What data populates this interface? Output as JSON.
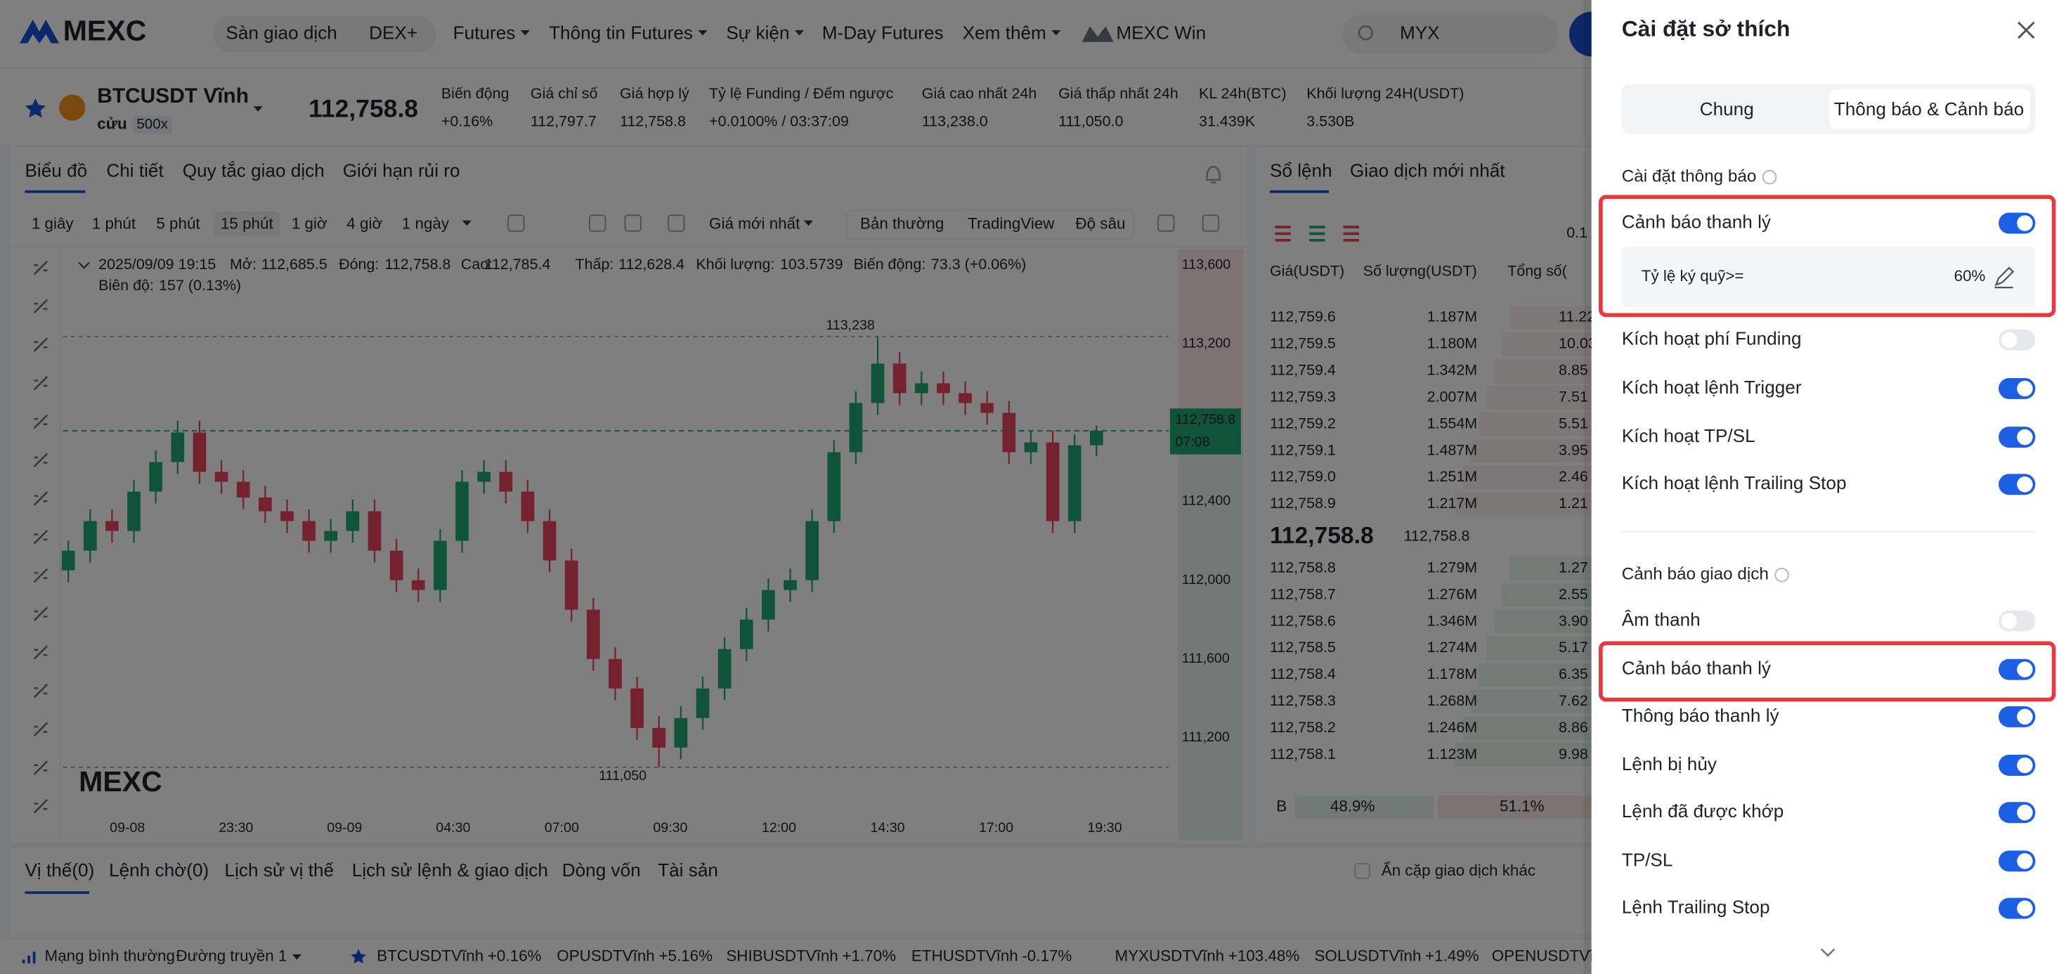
{
  "nav": {
    "logo": "MEXC",
    "items": [
      "Sàn giao dịch",
      "DEX+",
      "Futures",
      "Thông tin Futures",
      "Sự kiện",
      "M-Day Futures",
      "Xem thêm",
      "MEXC Win"
    ],
    "search": "MYX"
  },
  "ticker": {
    "symbol": "BTCUSDT Vĩnh",
    "symbol_line2": "cửu",
    "leverage": "500x",
    "price": "112,758.8",
    "stats": [
      {
        "label": "Biến động",
        "value": "+0.16%"
      },
      {
        "label": "Giá chỉ số",
        "value": "112,797.7"
      },
      {
        "label": "Giá hợp lý",
        "value": "112,758.8"
      },
      {
        "label": "Tỷ lệ Funding / Đếm ngược",
        "value": "+0.0100% / 03:37:09"
      },
      {
        "label": "Giá cao nhất 24h",
        "value": "113,238.0"
      },
      {
        "label": "Giá thấp nhất 24h",
        "value": "111,050.0"
      },
      {
        "label": "KL 24h(BTC)",
        "value": "31.439K"
      },
      {
        "label": "Khối lượng 24H(USDT)",
        "value": "3.530B"
      }
    ]
  },
  "chart_tabs": [
    "Biểu đồ",
    "Chi tiết",
    "Quy tắc giao dịch",
    "Giới hạn rủi ro"
  ],
  "book_tabs": [
    "Sổ lệnh",
    "Giao dịch mới nhất"
  ],
  "intervals": [
    "1 giây",
    "1 phút",
    "5 phút",
    "15 phút",
    "1 giờ",
    "4 giờ",
    "1 ngày"
  ],
  "active_interval": 3,
  "chart_options": [
    "Giá mới nhất",
    "Bản thường",
    "TradingView",
    "Độ sâu"
  ],
  "ohlc": {
    "date": "2025/09/09 19:15",
    "fields": [
      {
        "label": "Mở:",
        "value": "112,685.5"
      },
      {
        "label": "Đóng:",
        "value": "112,758.8"
      },
      {
        "label": "Cao:",
        "value": "112,785.4"
      },
      {
        "label": "Thấp:",
        "value": "112,628.4"
      },
      {
        "label": "Khối lượng:",
        "value": "103.5739"
      },
      {
        "label": "Biến động:",
        "value": "73.3 (+0.06%)"
      }
    ],
    "amplitude": {
      "label": "Biên độ:",
      "value": "157 (0.13%)"
    }
  },
  "chart": {
    "type": "candlestick",
    "ylim": [
      110800,
      113680
    ],
    "yticks": [
      {
        "value": 113600,
        "label": "113,600"
      },
      {
        "value": 113200,
        "label": "113,200"
      },
      {
        "value": 112400,
        "label": "112,400"
      },
      {
        "value": 112000,
        "label": "112,000"
      },
      {
        "value": 111600,
        "label": "111,600"
      },
      {
        "value": 111200,
        "label": "111,200"
      }
    ],
    "x_labels": [
      "09-08",
      "23:30",
      "09-09",
      "04:30",
      "07:00",
      "09:30",
      "12:00",
      "14:30",
      "17:00",
      "19:30"
    ],
    "high": {
      "value": 113238,
      "label": "113,238"
    },
    "low": {
      "value": 111050,
      "label": "111,050"
    },
    "last": {
      "value": 112758.8,
      "label": "112,758.8"
    },
    "countdown": "07:08",
    "watermark": "MEXC",
    "candles": [
      [
        112050,
        112200,
        111990,
        112150
      ],
      [
        112150,
        112360,
        112090,
        112300
      ],
      [
        112300,
        112360,
        112190,
        112250
      ],
      [
        112250,
        112510,
        112190,
        112450
      ],
      [
        112450,
        112660,
        112390,
        112600
      ],
      [
        112600,
        112810,
        112540,
        112750
      ],
      [
        112750,
        112810,
        112490,
        112550
      ],
      [
        112550,
        112610,
        112440,
        112500
      ],
      [
        112500,
        112560,
        112360,
        112420
      ],
      [
        112420,
        112480,
        112290,
        112350
      ],
      [
        112350,
        112410,
        112240,
        112300
      ],
      [
        112300,
        112360,
        112140,
        112200
      ],
      [
        112200,
        112310,
        112140,
        112250
      ],
      [
        112250,
        112410,
        112190,
        112350
      ],
      [
        112350,
        112410,
        112090,
        112150
      ],
      [
        112150,
        112210,
        111940,
        112000
      ],
      [
        112000,
        112060,
        111890,
        111950
      ],
      [
        111950,
        112260,
        111890,
        112200
      ],
      [
        112200,
        112560,
        112140,
        112500
      ],
      [
        112500,
        112610,
        112440,
        112550
      ],
      [
        112550,
        112610,
        112390,
        112450
      ],
      [
        112450,
        112510,
        112240,
        112300
      ],
      [
        112300,
        112360,
        112040,
        112100
      ],
      [
        112100,
        112160,
        111790,
        111850
      ],
      [
        111850,
        111910,
        111540,
        111600
      ],
      [
        111600,
        111660,
        111390,
        111450
      ],
      [
        111450,
        111510,
        111190,
        111250
      ],
      [
        111250,
        111310,
        111050,
        111150
      ],
      [
        111150,
        111360,
        111090,
        111300
      ],
      [
        111300,
        111510,
        111240,
        111450
      ],
      [
        111450,
        111710,
        111390,
        111650
      ],
      [
        111650,
        111860,
        111590,
        111800
      ],
      [
        111800,
        112010,
        111740,
        111950
      ],
      [
        111950,
        112060,
        111890,
        112000
      ],
      [
        112000,
        112360,
        111940,
        112300
      ],
      [
        112300,
        112710,
        112240,
        112650
      ],
      [
        112650,
        112960,
        112590,
        112900
      ],
      [
        112900,
        113238,
        112840,
        113100
      ],
      [
        113100,
        113160,
        112890,
        112950
      ],
      [
        112950,
        113060,
        112890,
        113000
      ],
      [
        113000,
        113060,
        112890,
        112950
      ],
      [
        112950,
        113010,
        112840,
        112900
      ],
      [
        112900,
        112960,
        112790,
        112850
      ],
      [
        112850,
        112910,
        112590,
        112650
      ],
      [
        112650,
        112760,
        112590,
        112700
      ],
      [
        112700,
        112760,
        112240,
        112300
      ],
      [
        112300,
        112740,
        112240,
        112685.5
      ],
      [
        112685.5,
        112785.4,
        112628.4,
        112758.8
      ]
    ],
    "up_color": "#1fa774",
    "down_color": "#e8455a"
  },
  "orderbook": {
    "headers": [
      "Giá(USDT)",
      "Số lượng(USDT)",
      "Tổng số("
    ],
    "step": "0.1",
    "asks": [
      [
        "112,759.6",
        "1.187M",
        "11.22"
      ],
      [
        "112,759.5",
        "1.180M",
        "10.03"
      ],
      [
        "112,759.4",
        "1.342M",
        "8.85"
      ],
      [
        "112,759.3",
        "2.007M",
        "7.51"
      ],
      [
        "112,759.2",
        "1.554M",
        "5.51"
      ],
      [
        "112,759.1",
        "1.487M",
        "3.95"
      ],
      [
        "112,759.0",
        "1.251M",
        "2.46"
      ],
      [
        "112,758.9",
        "1.217M",
        "1.21"
      ]
    ],
    "mid": "112,758.8",
    "mid_mark": "112,758.8",
    "bids": [
      [
        "112,758.8",
        "1.279M",
        "1.27"
      ],
      [
        "112,758.7",
        "1.276M",
        "2.55"
      ],
      [
        "112,758.6",
        "1.346M",
        "3.90"
      ],
      [
        "112,758.5",
        "1.274M",
        "5.17"
      ],
      [
        "112,758.4",
        "1.178M",
        "6.35"
      ],
      [
        "112,758.3",
        "1.268M",
        "7.62"
      ],
      [
        "112,758.2",
        "1.246M",
        "8.86"
      ],
      [
        "112,758.1",
        "1.123M",
        "9.98"
      ]
    ],
    "ratio": {
      "side": "B",
      "buy": "48.9%",
      "sell": "51.1%"
    }
  },
  "bottom_tabs": [
    "Vị thế(0)",
    "Lệnh chờ(0)",
    "Lịch sử vị thế",
    "Lịch sử lệnh & giao dịch",
    "Dòng vốn",
    "Tài sản"
  ],
  "hide_other": "Ẩn cặp giao dịch khác",
  "footer": {
    "network": "Mạng bình thường",
    "line": "Đường truyền 1",
    "tickers": [
      {
        "name": "BTCUSDTVĩnh",
        "change": "+0.16%"
      },
      {
        "name": "OPUSDTVĩnh",
        "change": "+5.16%"
      },
      {
        "name": "SHIBUSDTVĩnh",
        "change": "+1.70%"
      },
      {
        "name": "ETHUSDTVĩnh",
        "change": "-0.17%"
      },
      {
        "name": "MYXUSDTVĩnh",
        "change": "+103.48%"
      },
      {
        "name": "SOLUSDTVĩnh",
        "change": "+1.49%"
      },
      {
        "name": "OPENUSDTVĩnh",
        "change": ""
      }
    ]
  },
  "panel": {
    "title": "Cài đặt sở thích",
    "tabs": [
      "Chung",
      "Thông báo & Cảnh báo"
    ],
    "active_tab": 1,
    "sections": [
      {
        "title": "Cài đặt thông báo",
        "rows": [
          {
            "label": "Cảnh báo thanh lý",
            "on": true,
            "highlight": true,
            "sub": {
              "label": "Tỷ lệ ký quỹ>=",
              "value": "60%"
            }
          },
          {
            "label": "Kích hoạt phí Funding",
            "on": false
          },
          {
            "label": "Kích hoạt lệnh Trigger",
            "on": true
          },
          {
            "label": "Kích hoạt TP/SL",
            "on": true
          },
          {
            "label": "Kích hoạt lệnh Trailing Stop",
            "on": true
          }
        ]
      },
      {
        "title": "Cảnh báo giao dịch",
        "rows": [
          {
            "label": "Âm thanh",
            "on": false
          },
          {
            "label": "Cảnh báo thanh lý",
            "on": true,
            "highlight": true
          },
          {
            "label": "Thông báo thanh lý",
            "on": true
          },
          {
            "label": "Lệnh bị hủy",
            "on": true
          },
          {
            "label": "Lệnh đã được khớp",
            "on": true
          },
          {
            "label": "TP/SL",
            "on": true
          },
          {
            "label": "Lệnh Trailing Stop",
            "on": true
          }
        ]
      }
    ]
  }
}
